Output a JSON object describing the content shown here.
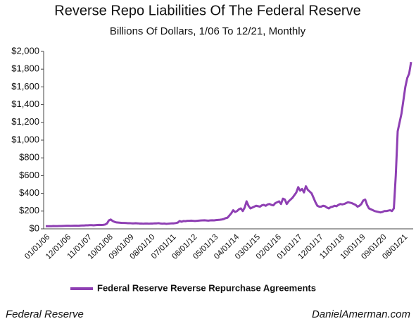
{
  "chart_data": {
    "type": "line",
    "title": "Reverse Repo Liabilities Of The Federal Reserve",
    "subtitle": "Billions Of Dollars, 1/06 To 12/21, Monthly",
    "source": "Federal Reserve",
    "credit": "DanielAmerman.com",
    "categories": [
      "01/01/06",
      null,
      null,
      null,
      null,
      null,
      null,
      null,
      null,
      null,
      null,
      "12/01/06",
      null,
      null,
      null,
      null,
      null,
      null,
      null,
      null,
      null,
      null,
      "11/01/07",
      null,
      null,
      null,
      null,
      null,
      null,
      null,
      null,
      null,
      null,
      "10/01/08",
      null,
      null,
      null,
      null,
      null,
      null,
      null,
      null,
      null,
      null,
      "09/01/09",
      null,
      null,
      null,
      null,
      null,
      null,
      null,
      null,
      null,
      null,
      "08/01/10",
      null,
      null,
      null,
      null,
      null,
      null,
      null,
      null,
      null,
      null,
      "07/01/11",
      null,
      null,
      null,
      null,
      null,
      null,
      null,
      null,
      null,
      null,
      "06/01/12",
      null,
      null,
      null,
      null,
      null,
      null,
      null,
      null,
      null,
      null,
      "05/01/13",
      null,
      null,
      null,
      null,
      null,
      null,
      null,
      null,
      null,
      null,
      "04/01/14",
      null,
      null,
      null,
      null,
      null,
      null,
      null,
      null,
      null,
      null,
      "03/01/15",
      null,
      null,
      null,
      null,
      null,
      null,
      null,
      null,
      null,
      null,
      "02/01/16",
      null,
      null,
      null,
      null,
      null,
      null,
      null,
      null,
      null,
      null,
      "01/01/17",
      null,
      null,
      null,
      null,
      null,
      null,
      null,
      null,
      null,
      null,
      "12/01/17",
      null,
      null,
      null,
      null,
      null,
      null,
      null,
      null,
      null,
      null,
      "11/01/18",
      null,
      null,
      null,
      null,
      null,
      null,
      null,
      null,
      null,
      null,
      "10/01/19",
      null,
      null,
      null,
      null,
      null,
      null,
      null,
      null,
      null,
      null,
      "09/01/20",
      null,
      null,
      null,
      null,
      null,
      null,
      null,
      null,
      null,
      null,
      "08/01/21",
      null,
      null,
      null,
      null
    ],
    "series": [
      {
        "name": "Federal Reserve Reverse Repurchase Agreements",
        "color": "#8e3fb3",
        "values": [
          30,
          30,
          30,
          30,
          32,
          31,
          31,
          32,
          32,
          33,
          34,
          35,
          35,
          34,
          35,
          36,
          36,
          35,
          37,
          38,
          38,
          40,
          40,
          42,
          42,
          40,
          42,
          44,
          45,
          44,
          45,
          48,
          60,
          95,
          105,
          88,
          78,
          72,
          70,
          68,
          66,
          66,
          65,
          64,
          64,
          62,
          62,
          63,
          62,
          60,
          60,
          58,
          60,
          60,
          58,
          60,
          60,
          62,
          62,
          64,
          60,
          58,
          60,
          56,
          58,
          60,
          62,
          62,
          65,
          70,
          88,
          80,
          88,
          86,
          90,
          90,
          92,
          90,
          88,
          90,
          92,
          94,
          95,
          96,
          94,
          92,
          95,
          96,
          95,
          98,
          100,
          102,
          105,
          110,
          120,
          125,
          150,
          175,
          210,
          190,
          200,
          220,
          230,
          200,
          240,
          310,
          260,
          230,
          240,
          250,
          260,
          255,
          250,
          265,
          270,
          260,
          275,
          280,
          270,
          265,
          290,
          300,
          310,
          280,
          340,
          330,
          280,
          310,
          330,
          350,
          380,
          410,
          470,
          430,
          450,
          410,
          480,
          440,
          420,
          400,
          350,
          300,
          260,
          250,
          250,
          260,
          255,
          240,
          230,
          245,
          250,
          260,
          255,
          270,
          280,
          275,
          280,
          290,
          300,
          295,
          290,
          280,
          270,
          250,
          260,
          280,
          320,
          330,
          270,
          230,
          220,
          210,
          200,
          195,
          190,
          185,
          190,
          200,
          200,
          205,
          210,
          200,
          230,
          600,
          1100,
          1200,
          1300,
          1450,
          1600,
          1700,
          1750,
          1880
        ]
      }
    ],
    "ylim": [
      0,
      2000
    ],
    "yticks": [
      {
        "value": 0,
        "label": "$0"
      },
      {
        "value": 200,
        "label": "$200"
      },
      {
        "value": 400,
        "label": "$400"
      },
      {
        "value": 600,
        "label": "$600"
      },
      {
        "value": 800,
        "label": "$800"
      },
      {
        "value": 1000,
        "label": "$1,000"
      },
      {
        "value": 1200,
        "label": "$1,200"
      },
      {
        "value": 1400,
        "label": "$1,400"
      },
      {
        "value": 1600,
        "label": "$1,600"
      },
      {
        "value": 1800,
        "label": "$1,800"
      },
      {
        "value": 2000,
        "label": "$2,000"
      }
    ],
    "grid": false,
    "legend": "bottom"
  }
}
